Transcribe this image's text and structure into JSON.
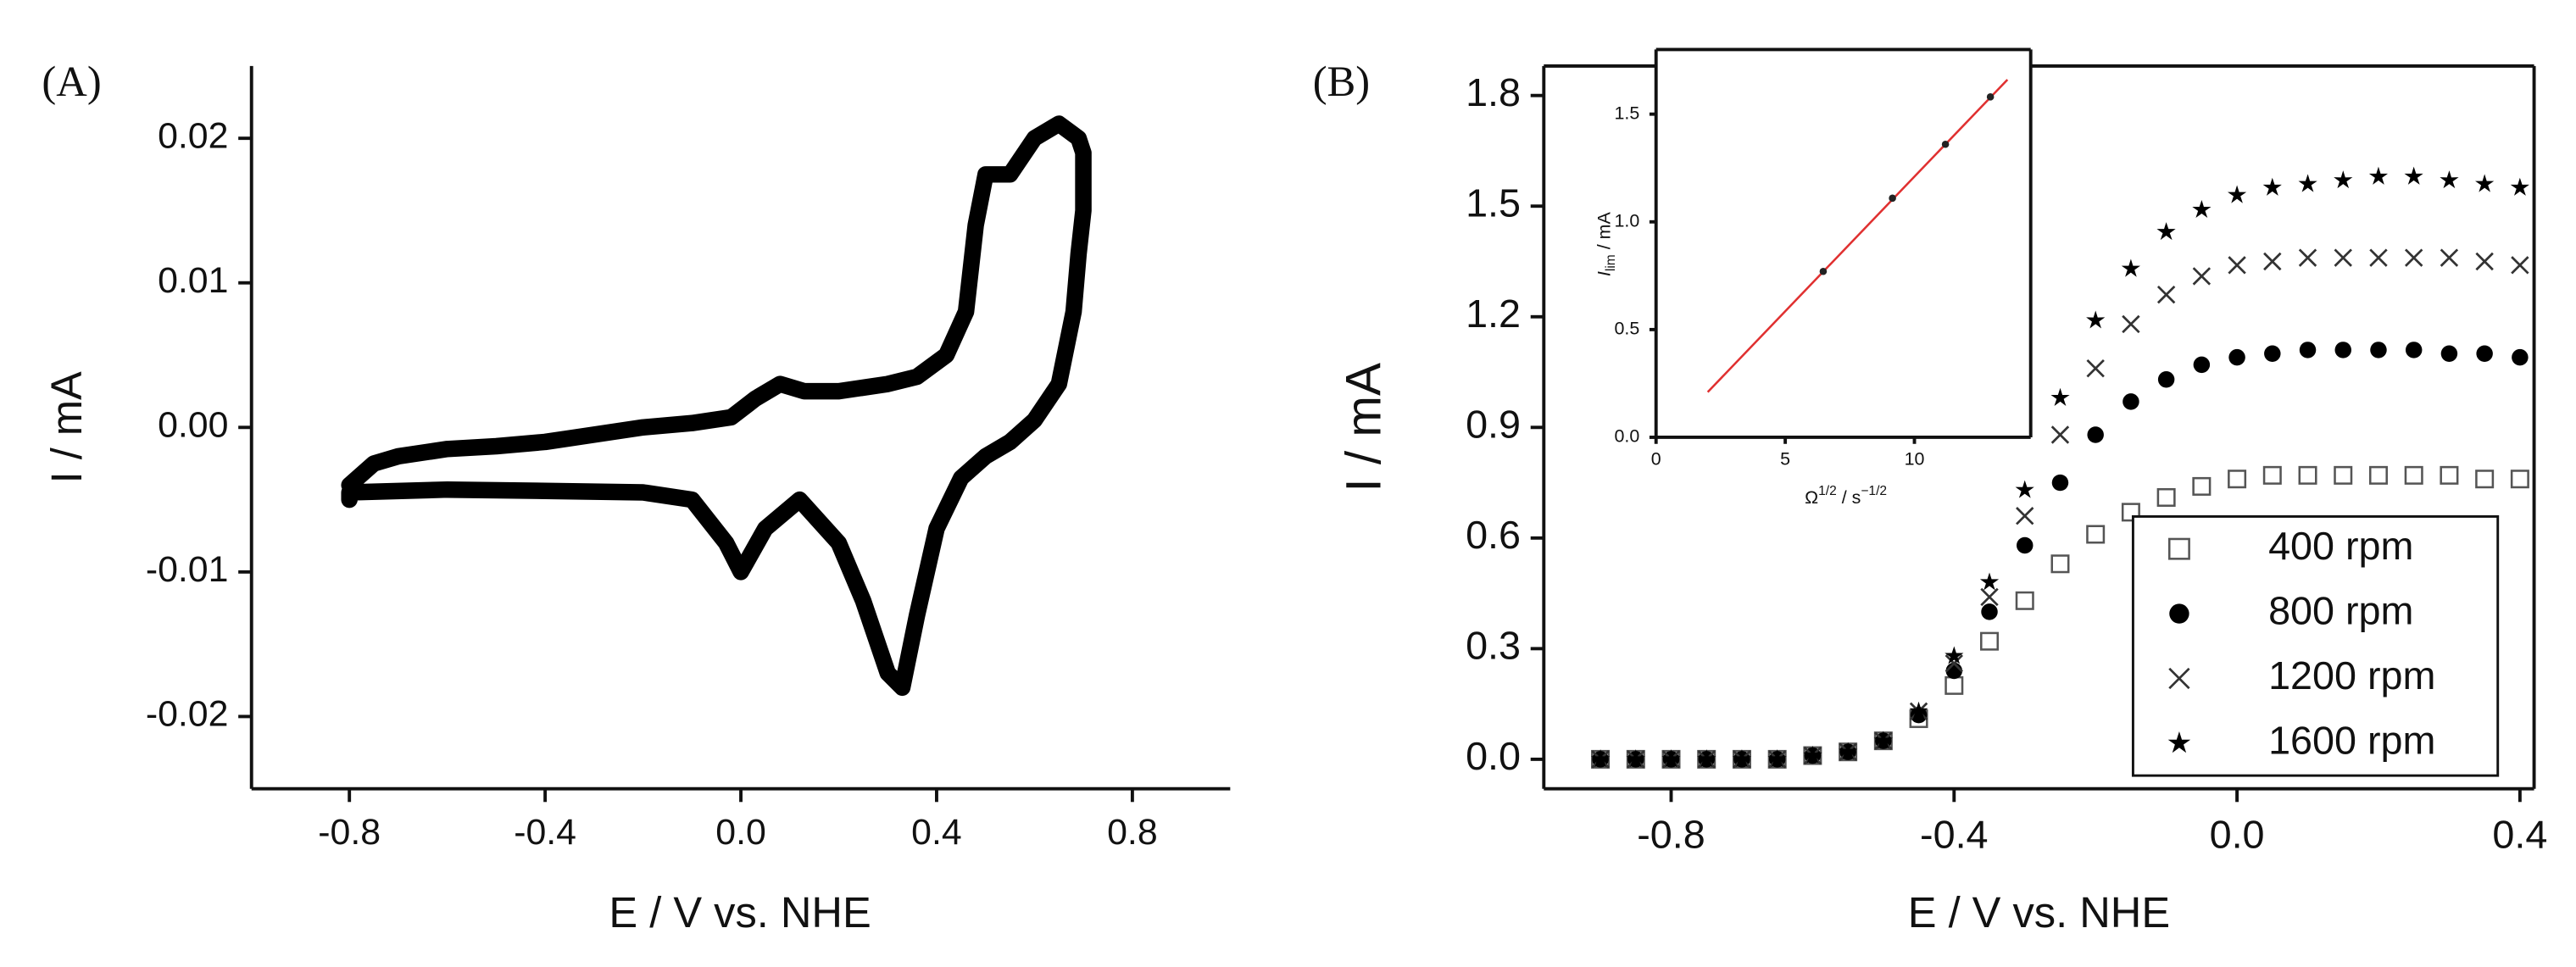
{
  "chart_data": [
    {
      "type": "line",
      "panel_label": "(A)",
      "x_label": "E / V vs. NHE",
      "y_label": "I / mA",
      "box": false,
      "color": "#000000",
      "xlim": [
        -1.0,
        1.0
      ],
      "xticks": [
        -0.8,
        -0.4,
        {
          "value": 0,
          "label": "0.0"
        },
        0.4,
        0.8
      ],
      "ylim": [
        -0.025,
        0.025
      ],
      "yticks": [
        0.02,
        0.01,
        {
          "value": 0,
          "label": "0.00"
        },
        -0.01,
        -0.02
      ],
      "x": [
        -0.8,
        -0.75,
        -0.7,
        -0.6,
        -0.5,
        -0.4,
        -0.3,
        -0.2,
        -0.1,
        -0.02,
        0.03,
        0.08,
        0.13,
        0.2,
        0.3,
        0.36,
        0.42,
        0.46,
        0.48,
        0.5,
        0.55,
        0.6,
        0.65,
        0.69,
        0.7,
        0.7,
        0.69,
        0.68,
        0.65,
        0.6,
        0.55,
        0.5,
        0.45,
        0.4,
        0.36,
        0.33,
        0.3,
        0.25,
        0.2,
        0.12,
        0.05,
        0,
        -0.03,
        -0.1,
        -0.2,
        -0.4,
        -0.6,
        -0.8,
        -0.8
      ],
      "values": [
        -0.004,
        -0.0025,
        -0.002,
        -0.0015,
        -0.0013,
        -0.001,
        -0.0005,
        0,
        0.0003,
        0.0007,
        0.002,
        0.003,
        0.0025,
        0.0025,
        0.003,
        0.0035,
        0.005,
        0.008,
        0.014,
        0.0175,
        0.0175,
        0.02,
        0.021,
        0.02,
        0.019,
        0.015,
        0.012,
        0.008,
        0.003,
        0.0005,
        -0.001,
        -0.002,
        -0.0035,
        -0.007,
        -0.013,
        -0.018,
        -0.017,
        -0.012,
        -0.008,
        -0.005,
        -0.007,
        -0.01,
        -0.008,
        -0.005,
        -0.0045,
        -0.0044,
        -0.0043,
        -0.0045,
        -0.005
      ]
    },
    {
      "type": "scatter",
      "panel_label": "(B)",
      "x_label": "E / V vs. NHE",
      "y_label": "I / mA",
      "box": true,
      "xlim": [
        -0.98,
        0.42
      ],
      "xticks": [
        -0.8,
        -0.4,
        {
          "value": 0,
          "label": "0.0"
        },
        0.4
      ],
      "ylim": [
        -0.08,
        1.88
      ],
      "yticks": [
        {
          "value": 0,
          "label": "0.0"
        },
        0.3,
        0.6,
        0.9,
        1.2,
        1.5,
        1.8
      ],
      "x": [
        -0.9,
        -0.85,
        -0.8,
        -0.75,
        -0.7,
        -0.65,
        -0.6,
        -0.55,
        -0.5,
        -0.45,
        -0.4,
        -0.35,
        -0.3,
        -0.25,
        -0.2,
        -0.15,
        -0.1,
        -0.05,
        0,
        0.05,
        0.1,
        0.15,
        0.2,
        0.25,
        0.3,
        0.35,
        0.4
      ],
      "legend": "lower right",
      "series": [
        {
          "name": "400 rpm",
          "marker": "square-open",
          "color": "#555555",
          "values": [
            0,
            0,
            0,
            0,
            0,
            0,
            0.01,
            0.02,
            0.05,
            0.11,
            0.2,
            0.32,
            0.43,
            0.53,
            0.61,
            0.67,
            0.71,
            0.74,
            0.76,
            0.77,
            0.77,
            0.77,
            0.77,
            0.77,
            0.77,
            0.76,
            0.76
          ]
        },
        {
          "name": "800 rpm",
          "marker": "circle",
          "color": "#000000",
          "values": [
            0,
            0,
            0,
            0,
            0,
            0,
            0.01,
            0.02,
            0.05,
            0.12,
            0.24,
            0.4,
            0.58,
            0.75,
            0.88,
            0.97,
            1.03,
            1.07,
            1.09,
            1.1,
            1.11,
            1.11,
            1.11,
            1.11,
            1.1,
            1.1,
            1.09
          ]
        },
        {
          "name": "1200 rpm",
          "marker": "x",
          "color": "#333333",
          "values": [
            0,
            0,
            0,
            0,
            0,
            0,
            0.01,
            0.02,
            0.05,
            0.13,
            0.26,
            0.44,
            0.66,
            0.88,
            1.06,
            1.18,
            1.26,
            1.31,
            1.34,
            1.35,
            1.36,
            1.36,
            1.36,
            1.36,
            1.36,
            1.35,
            1.34
          ]
        },
        {
          "name": "1600 rpm",
          "marker": "star",
          "color": "#000000",
          "values": [
            0,
            0,
            0,
            0,
            0,
            0,
            0.01,
            0.02,
            0.05,
            0.13,
            0.28,
            0.48,
            0.73,
            0.98,
            1.19,
            1.33,
            1.43,
            1.49,
            1.53,
            1.55,
            1.56,
            1.57,
            1.58,
            1.58,
            1.57,
            1.56,
            1.55
          ]
        }
      ]
    },
    {
      "type": "scatter",
      "x_label": [
        "Ω",
        "1/2",
        " / s",
        "−1/2"
      ],
      "y_label": [
        "I",
        "lim",
        " / mA"
      ],
      "box": true,
      "xlim": [
        0,
        14.5
      ],
      "xticks": [
        0,
        5,
        10
      ],
      "ylim": [
        0,
        1.8
      ],
      "yticks": [
        {
          "value": 0,
          "label": "0.0"
        },
        0.5,
        {
          "value": 1,
          "label": "1.0"
        },
        1.5
      ],
      "x": [
        6.47,
        9.15,
        11.2,
        12.94
      ],
      "series": [
        {
          "marker": "dot",
          "color": "#222222",
          "values": [
            0.77,
            1.11,
            1.36,
            1.58
          ]
        }
      ],
      "fit": {
        "x": [
          2,
          13.6
        ],
        "values": [
          0.21,
          1.66
        ],
        "color": "#e03030"
      }
    }
  ]
}
